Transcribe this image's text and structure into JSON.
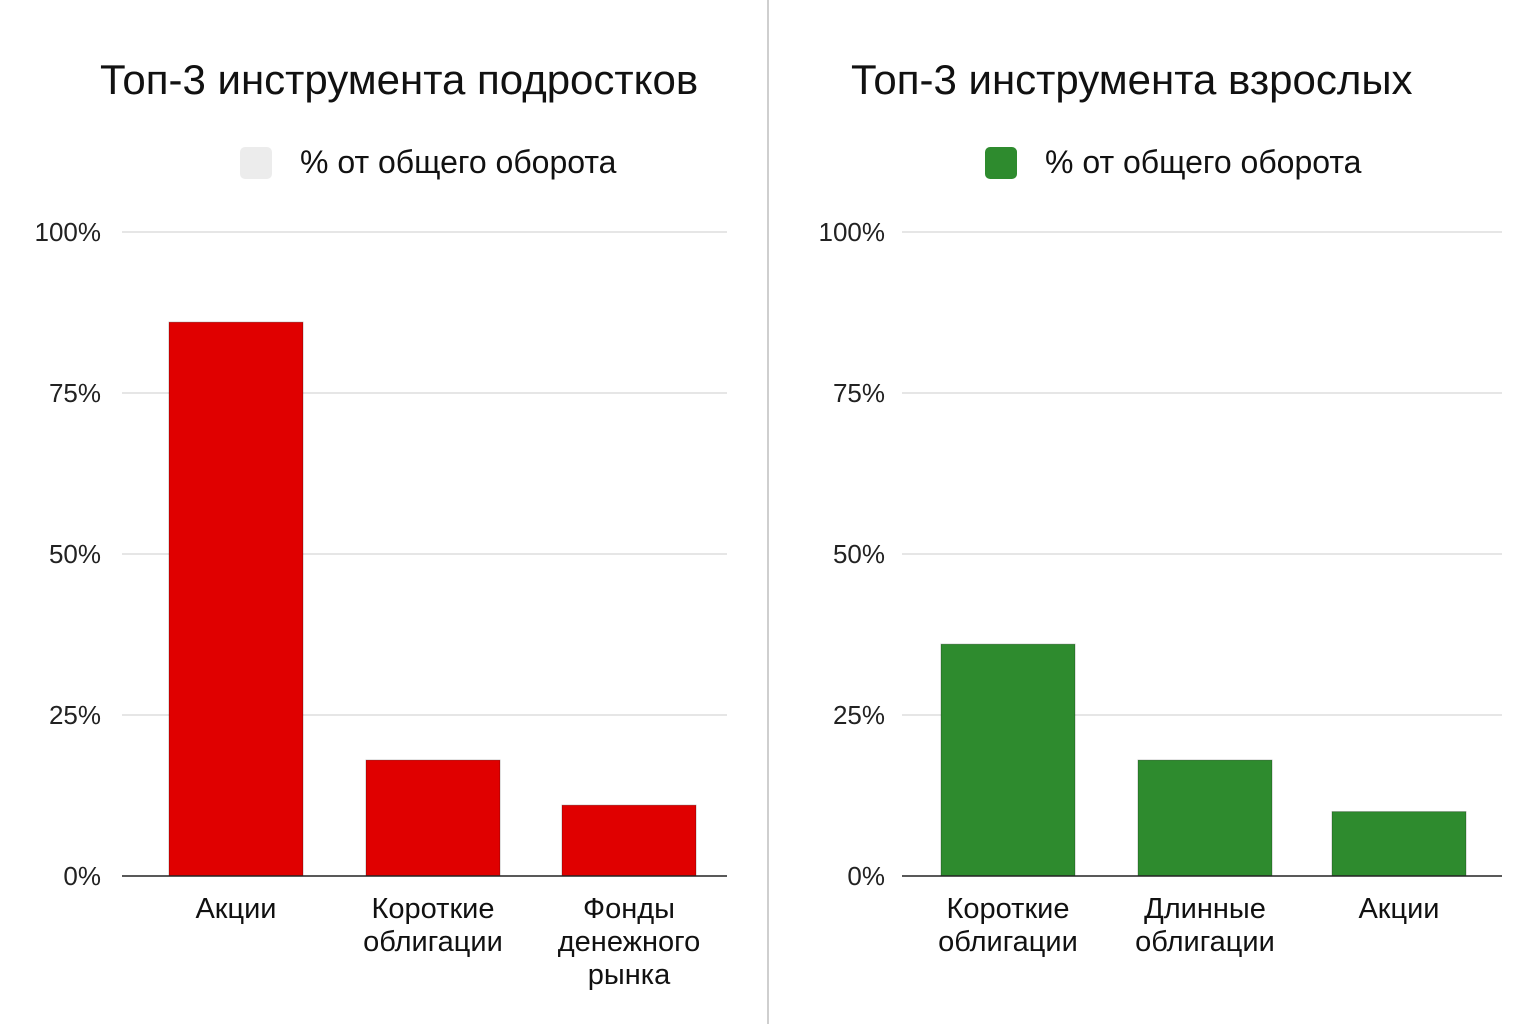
{
  "charts": [
    {
      "legend_color": "#ececec",
      "chart_data": {
        "type": "bar",
        "title": "Топ-3 инструмента подростков",
        "legend_position": "top-center",
        "categories": [
          "Акции",
          "Короткие облигации",
          "Фонды денежного рынка"
        ],
        "category_lines": [
          [
            "Акции"
          ],
          [
            "Короткие",
            "облигации"
          ],
          [
            "Фонды",
            "денежного",
            "рынка"
          ]
        ],
        "series": [
          {
            "name": "% от общего оборота",
            "values": [
              86,
              18,
              11
            ],
            "color": "#e00000"
          }
        ],
        "y_ticks": [
          "0%",
          "25%",
          "50%",
          "75%",
          "100%"
        ],
        "ylim": [
          0,
          100
        ],
        "grid": true
      }
    },
    {
      "legend_color": "#2e8b2e",
      "chart_data": {
        "type": "bar",
        "title": "Топ-3 инструмента взрослых",
        "legend_position": "top-center",
        "categories": [
          "Короткие облигации",
          "Длинные облигации",
          "Акции"
        ],
        "category_lines": [
          [
            "Короткие",
            "облигации"
          ],
          [
            "Длинные",
            "облигации"
          ],
          [
            "Акции"
          ]
        ],
        "series": [
          {
            "name": "% от общего оборота",
            "values": [
              36,
              18,
              10
            ],
            "color": "#2e8b2e"
          }
        ],
        "y_ticks": [
          "0%",
          "25%",
          "50%",
          "75%",
          "100%"
        ],
        "ylim": [
          0,
          100
        ],
        "grid": true
      }
    }
  ]
}
